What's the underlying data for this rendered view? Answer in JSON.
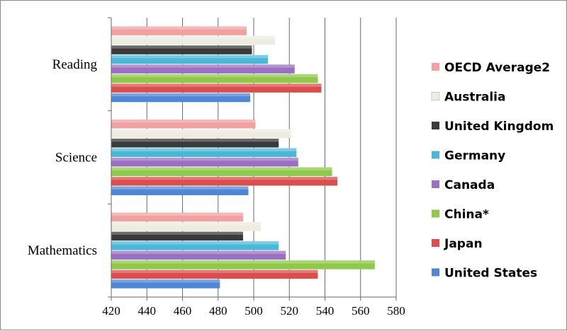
{
  "chart_data": {
    "type": "bar",
    "orientation": "horizontal",
    "title": "",
    "xlabel": "",
    "ylabel": "",
    "xlim": [
      420,
      580
    ],
    "xticks": [
      420,
      440,
      460,
      480,
      500,
      520,
      540,
      560,
      580
    ],
    "categories": [
      "Mathematics",
      "Science",
      "Reading"
    ],
    "grid": "vertical",
    "legend_position": "right",
    "series": [
      {
        "name": "OECD Average2",
        "color": "#f2a0a0",
        "values": [
          494,
          501,
          496
        ]
      },
      {
        "name": "Australia",
        "color": "#eeece1",
        "values": [
          504,
          521,
          512
        ]
      },
      {
        "name": "United Kingdom",
        "color": "#3a3a3a",
        "values": [
          494,
          514,
          499
        ]
      },
      {
        "name": "Germany",
        "color": "#4cb8d8",
        "values": [
          514,
          524,
          508
        ]
      },
      {
        "name": "Canada",
        "color": "#9b6fc2",
        "values": [
          518,
          525,
          523
        ]
      },
      {
        "name": "China*",
        "color": "#8fc84a",
        "values": [
          568,
          544,
          536
        ]
      },
      {
        "name": "Japan",
        "color": "#d94e4e",
        "values": [
          536,
          547,
          538
        ]
      },
      {
        "name": "United States",
        "color": "#4f86d6",
        "values": [
          481,
          497,
          498
        ]
      }
    ]
  }
}
